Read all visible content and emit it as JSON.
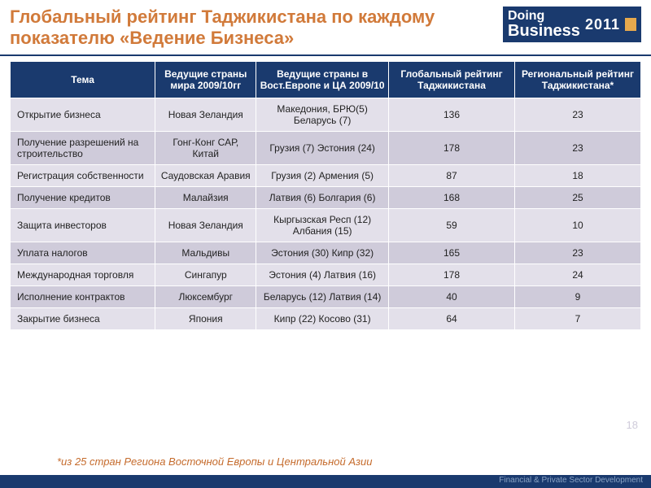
{
  "header": {
    "title": "Глобальный рейтинг Таджикистана по каждому показателю «Ведение Бизнеса»",
    "logo_line1": "Doing",
    "logo_line2": "Business",
    "logo_year": "2011"
  },
  "table": {
    "columns": [
      "Тема",
      "Ведущие страны мира 2009/10гг",
      "Ведущие страны в Вост.Европе и ЦА 2009/10",
      "Глобальный рейтинг Таджикистана",
      "Региональный рейтинг Таджикистана*"
    ],
    "rows": [
      {
        "topic": "Открытие бизнеса",
        "world": "Новая Зеландия",
        "region": "Македония, БРЮ(5) Беларусь (7)",
        "global": "136",
        "regional": "23"
      },
      {
        "topic": "Получение разрешений на строительство",
        "world": "Гонг-Конг САР, Китай",
        "region": "Грузия (7) Эстония (24)",
        "global": "178",
        "regional": "23"
      },
      {
        "topic": "Регистрация собственности",
        "world": "Саудовская Аравия",
        "region": "Грузия (2) Армения (5)",
        "global": "87",
        "regional": "18"
      },
      {
        "topic": "Получение кредитов",
        "world": "Малайзия",
        "region": "Латвия (6) Болгария (6)",
        "global": "168",
        "regional": "25"
      },
      {
        "topic": "Защита инвесторов",
        "world": "Новая Зеландия",
        "region": "Кыргызская Респ (12) Албания (15)",
        "global": "59",
        "regional": "10"
      },
      {
        "topic": "Уплата налогов",
        "world": "Мальдивы",
        "region": "Эстония (30) Кипр (32)",
        "global": "165",
        "regional": "23"
      },
      {
        "topic": "Международная торговля",
        "world": "Сингапур",
        "region": "Эстония (4) Латвия (16)",
        "global": "178",
        "regional": "24"
      },
      {
        "topic": "Исполнение контрактов",
        "world": "Люксембург",
        "region": "Беларусь (12) Латвия (14)",
        "global": "40",
        "regional": "9"
      },
      {
        "topic": "Закрытие бизнеса",
        "world": "Япония",
        "region": "Кипр (22) Косово (31)",
        "global": "64",
        "regional": "7"
      }
    ],
    "header_bg": "#1a3a6e",
    "header_color": "#ffffff",
    "row_odd_bg": "#e3e0ea",
    "row_even_bg": "#cfcbda",
    "font_size": 12
  },
  "footnote": "*из 25 стран Региона Восточной Европы и Центральной Азии",
  "page_number": "18",
  "footer": "Financial & Private Sector Development",
  "colors": {
    "title": "#d17a3a",
    "border": "#1a3a6e",
    "footnote": "#c56b2c",
    "logo_accent": "#e7a94d"
  }
}
